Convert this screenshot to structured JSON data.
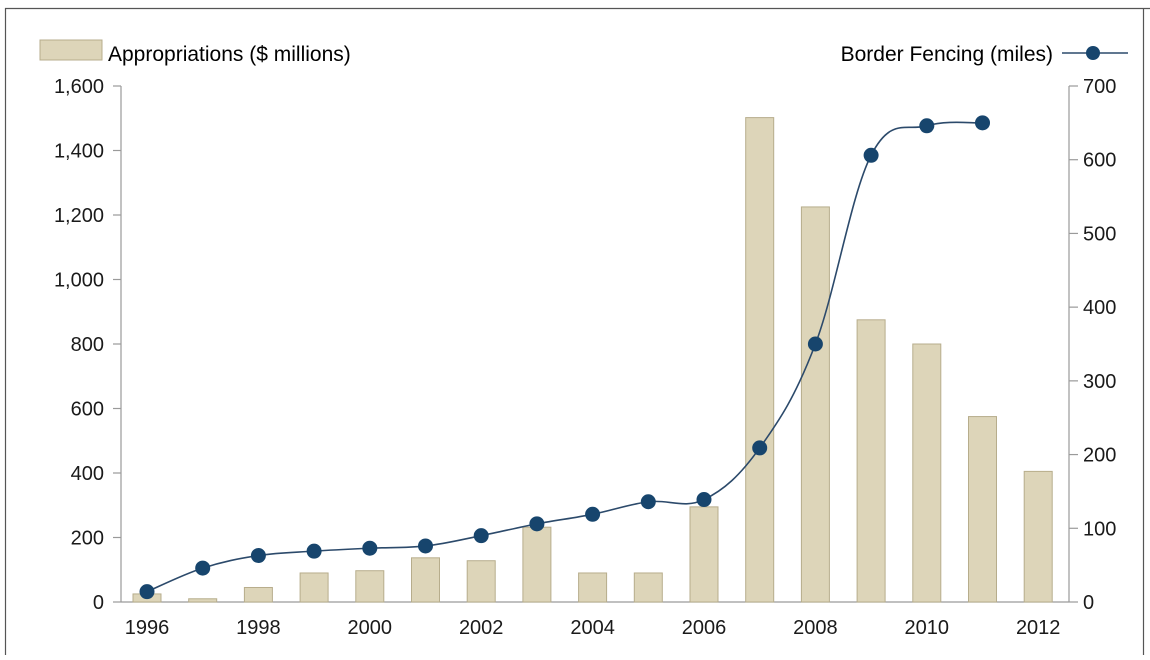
{
  "chart_data": {
    "type": "bar+line",
    "legend": {
      "bar_label": "Appropriations ($ millions)",
      "line_label": "Border Fencing (miles)",
      "placement": "top"
    },
    "x": [
      1996,
      1997,
      1998,
      1999,
      2000,
      2001,
      2002,
      2003,
      2004,
      2005,
      2006,
      2007,
      2008,
      2009,
      2010,
      2011,
      2012
    ],
    "x_tick_labels": [
      "1996",
      "1998",
      "2000",
      "2002",
      "2004",
      "2006",
      "2008",
      "2010",
      "2012"
    ],
    "series": [
      {
        "name": "Appropriations ($ millions)",
        "type": "bar",
        "axis": "left",
        "values": [
          25,
          10,
          45,
          90,
          97,
          137,
          128,
          232,
          90,
          90,
          295,
          1502,
          1225,
          875,
          800,
          575,
          405
        ]
      },
      {
        "name": "Border Fencing (miles)",
        "type": "line",
        "axis": "right",
        "values": [
          14,
          46,
          63,
          69,
          73,
          76,
          90,
          106,
          119,
          136,
          139,
          209,
          350,
          606,
          646,
          650,
          null
        ]
      }
    ],
    "left_axis": {
      "ylim": [
        0,
        1600
      ],
      "ticks": [
        0,
        200,
        400,
        600,
        800,
        1000,
        1200,
        1400,
        1600
      ],
      "tick_labels": [
        "0",
        "200",
        "400",
        "600",
        "800",
        "1,000",
        "1,200",
        "1,400",
        "1,600"
      ]
    },
    "right_axis": {
      "ylim": [
        0,
        700
      ],
      "ticks": [
        0,
        100,
        200,
        300,
        400,
        500,
        600,
        700
      ],
      "tick_labels": [
        "0",
        "100",
        "200",
        "300",
        "400",
        "500",
        "600",
        "700"
      ]
    },
    "grid": false,
    "colors": {
      "bar_fill": "#ddd5b9",
      "bar_stroke": "#b7ad8c",
      "line": "#2c4a6b",
      "marker": "#17456d",
      "axis": "#9a9a9a",
      "text": "#1a1a1a"
    }
  }
}
